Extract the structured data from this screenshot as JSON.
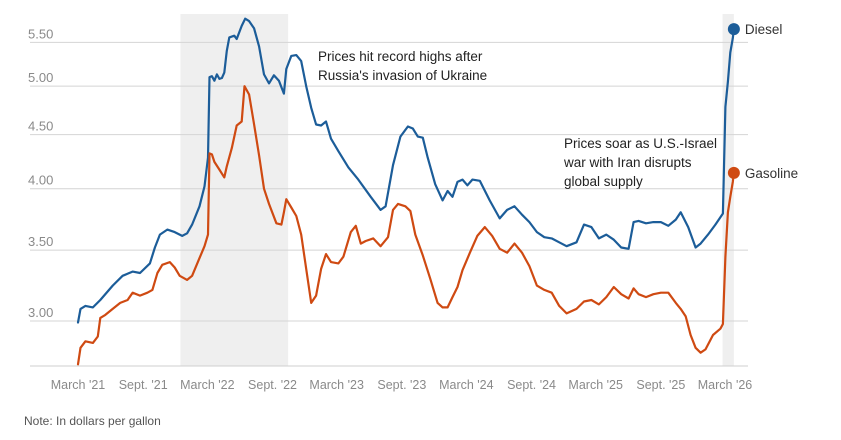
{
  "note": "Note: In dollars per gallon",
  "chart_data": {
    "type": "line",
    "y_scale": "log",
    "ylim": [
      2.72,
      5.85
    ],
    "y_ticks": [
      3.0,
      3.5,
      4.0,
      4.5,
      5.0,
      5.5
    ],
    "y_tick_labels": [
      "3.00",
      "3.50",
      "4.00",
      "4.50",
      "5.00",
      "5.50"
    ],
    "grid": true,
    "x_range": [
      "2021-03-01",
      "2026-04-01"
    ],
    "x_ticks": [
      {
        "date": "2021-03-01",
        "label": "March '21"
      },
      {
        "date": "2021-09-01",
        "label": "Sept. '21"
      },
      {
        "date": "2022-03-01",
        "label": "March '22"
      },
      {
        "date": "2022-09-01",
        "label": "Sept. '22"
      },
      {
        "date": "2023-03-01",
        "label": "March '23"
      },
      {
        "date": "2023-09-01",
        "label": "Sept. '23"
      },
      {
        "date": "2024-03-01",
        "label": "March '24"
      },
      {
        "date": "2024-09-01",
        "label": "Sept. '24"
      },
      {
        "date": "2025-03-01",
        "label": "March '25"
      },
      {
        "date": "2025-09-01",
        "label": "Sept. '25"
      },
      {
        "date": "2026-03-01",
        "label": "March '26"
      }
    ],
    "shaded_periods": [
      {
        "start": "2021-12-15",
        "end": "2022-10-15"
      },
      {
        "start": "2026-02-22",
        "end": "2026-03-26"
      }
    ],
    "annotations": [
      {
        "lines": [
          "Prices hit record highs after",
          "Russia's invasion of Ukraine"
        ]
      },
      {
        "lines": [
          "Prices soar as U.S.-Israel",
          "war with Iran disrupts",
          "global supply"
        ]
      }
    ],
    "series": [
      {
        "name": "Diesel",
        "color": "#1c5d99",
        "points": [
          [
            "2021-03-01",
            2.99
          ],
          [
            "2021-03-08",
            3.08
          ],
          [
            "2021-03-22",
            3.1
          ],
          [
            "2021-04-12",
            3.09
          ],
          [
            "2021-05-03",
            3.14
          ],
          [
            "2021-06-07",
            3.24
          ],
          [
            "2021-07-05",
            3.31
          ],
          [
            "2021-08-02",
            3.34
          ],
          [
            "2021-08-23",
            3.33
          ],
          [
            "2021-09-20",
            3.4
          ],
          [
            "2021-10-04",
            3.52
          ],
          [
            "2021-10-18",
            3.62
          ],
          [
            "2021-11-08",
            3.66
          ],
          [
            "2021-11-29",
            3.64
          ],
          [
            "2021-12-20",
            3.61
          ],
          [
            "2022-01-03",
            3.63
          ],
          [
            "2022-01-17",
            3.7
          ],
          [
            "2022-02-07",
            3.85
          ],
          [
            "2022-02-21",
            4.02
          ],
          [
            "2022-03-03",
            4.28
          ],
          [
            "2022-03-07",
            5.1
          ],
          [
            "2022-03-14",
            5.11
          ],
          [
            "2022-03-21",
            5.06
          ],
          [
            "2022-03-28",
            5.13
          ],
          [
            "2022-04-04",
            5.08
          ],
          [
            "2022-04-11",
            5.09
          ],
          [
            "2022-04-18",
            5.15
          ],
          [
            "2022-04-25",
            5.4
          ],
          [
            "2022-05-02",
            5.56
          ],
          [
            "2022-05-16",
            5.58
          ],
          [
            "2022-05-23",
            5.54
          ],
          [
            "2022-06-06",
            5.7
          ],
          [
            "2022-06-16",
            5.79
          ],
          [
            "2022-06-27",
            5.76
          ],
          [
            "2022-07-11",
            5.67
          ],
          [
            "2022-07-25",
            5.45
          ],
          [
            "2022-08-08",
            5.13
          ],
          [
            "2022-08-22",
            5.03
          ],
          [
            "2022-09-05",
            5.12
          ],
          [
            "2022-09-19",
            5.06
          ],
          [
            "2022-10-03",
            4.92
          ],
          [
            "2022-10-10",
            5.19
          ],
          [
            "2022-10-24",
            5.34
          ],
          [
            "2022-11-07",
            5.35
          ],
          [
            "2022-11-21",
            5.28
          ],
          [
            "2022-12-05",
            5.0
          ],
          [
            "2022-12-19",
            4.77
          ],
          [
            "2023-01-02",
            4.6
          ],
          [
            "2023-01-16",
            4.59
          ],
          [
            "2023-01-30",
            4.63
          ],
          [
            "2023-02-13",
            4.46
          ],
          [
            "2023-03-06",
            4.34
          ],
          [
            "2023-04-03",
            4.19
          ],
          [
            "2023-05-01",
            4.08
          ],
          [
            "2023-06-05",
            3.93
          ],
          [
            "2023-07-03",
            3.82
          ],
          [
            "2023-07-17",
            3.85
          ],
          [
            "2023-08-07",
            4.21
          ],
          [
            "2023-08-28",
            4.48
          ],
          [
            "2023-09-18",
            4.58
          ],
          [
            "2023-10-02",
            4.56
          ],
          [
            "2023-10-16",
            4.48
          ],
          [
            "2023-10-30",
            4.47
          ],
          [
            "2023-11-13",
            4.28
          ],
          [
            "2023-12-04",
            4.04
          ],
          [
            "2023-12-25",
            3.9
          ],
          [
            "2024-01-08",
            3.98
          ],
          [
            "2024-01-22",
            3.93
          ],
          [
            "2024-02-05",
            4.06
          ],
          [
            "2024-02-19",
            4.08
          ],
          [
            "2024-03-04",
            4.03
          ],
          [
            "2024-03-18",
            4.08
          ],
          [
            "2024-04-08",
            4.07
          ],
          [
            "2024-05-06",
            3.9
          ],
          [
            "2024-06-03",
            3.75
          ],
          [
            "2024-06-24",
            3.82
          ],
          [
            "2024-07-15",
            3.85
          ],
          [
            "2024-08-05",
            3.78
          ],
          [
            "2024-08-26",
            3.72
          ],
          [
            "2024-09-16",
            3.64
          ],
          [
            "2024-10-07",
            3.6
          ],
          [
            "2024-10-28",
            3.59
          ],
          [
            "2024-11-18",
            3.56
          ],
          [
            "2024-12-09",
            3.53
          ],
          [
            "2025-01-06",
            3.56
          ],
          [
            "2025-01-27",
            3.7
          ],
          [
            "2025-02-17",
            3.68
          ],
          [
            "2025-03-10",
            3.59
          ],
          [
            "2025-03-31",
            3.62
          ],
          [
            "2025-04-21",
            3.58
          ],
          [
            "2025-05-12",
            3.52
          ],
          [
            "2025-06-02",
            3.51
          ],
          [
            "2025-06-16",
            3.72
          ],
          [
            "2025-06-30",
            3.73
          ],
          [
            "2025-07-21",
            3.71
          ],
          [
            "2025-08-11",
            3.72
          ],
          [
            "2025-09-01",
            3.72
          ],
          [
            "2025-09-22",
            3.69
          ],
          [
            "2025-10-13",
            3.74
          ],
          [
            "2025-10-27",
            3.8
          ],
          [
            "2025-11-17",
            3.68
          ],
          [
            "2025-12-08",
            3.52
          ],
          [
            "2025-12-22",
            3.55
          ],
          [
            "2026-01-12",
            3.62
          ],
          [
            "2026-02-02",
            3.7
          ],
          [
            "2026-02-16",
            3.76
          ],
          [
            "2026-02-23",
            3.79
          ],
          [
            "2026-03-02",
            4.78
          ],
          [
            "2026-03-09",
            5.05
          ],
          [
            "2026-03-16",
            5.38
          ],
          [
            "2026-03-23",
            5.55
          ],
          [
            "2026-03-26",
            5.66
          ]
        ]
      },
      {
        "name": "Gasoline",
        "color": "#cf4a12",
        "points": [
          [
            "2021-03-01",
            2.73
          ],
          [
            "2021-03-08",
            2.83
          ],
          [
            "2021-03-22",
            2.87
          ],
          [
            "2021-04-12",
            2.86
          ],
          [
            "2021-04-26",
            2.9
          ],
          [
            "2021-05-03",
            3.02
          ],
          [
            "2021-05-17",
            3.04
          ],
          [
            "2021-06-07",
            3.08
          ],
          [
            "2021-06-28",
            3.12
          ],
          [
            "2021-07-19",
            3.14
          ],
          [
            "2021-08-02",
            3.19
          ],
          [
            "2021-08-23",
            3.17
          ],
          [
            "2021-09-13",
            3.19
          ],
          [
            "2021-09-27",
            3.21
          ],
          [
            "2021-10-11",
            3.33
          ],
          [
            "2021-10-25",
            3.39
          ],
          [
            "2021-11-15",
            3.41
          ],
          [
            "2021-11-29",
            3.37
          ],
          [
            "2021-12-13",
            3.31
          ],
          [
            "2022-01-03",
            3.28
          ],
          [
            "2022-01-17",
            3.31
          ],
          [
            "2022-02-07",
            3.44
          ],
          [
            "2022-02-21",
            3.53
          ],
          [
            "2022-03-03",
            3.62
          ],
          [
            "2022-03-07",
            4.32
          ],
          [
            "2022-03-14",
            4.31
          ],
          [
            "2022-03-21",
            4.24
          ],
          [
            "2022-04-04",
            4.17
          ],
          [
            "2022-04-18",
            4.1
          ],
          [
            "2022-04-25",
            4.2
          ],
          [
            "2022-05-09",
            4.37
          ],
          [
            "2022-05-23",
            4.59
          ],
          [
            "2022-06-06",
            4.63
          ],
          [
            "2022-06-14",
            5.0
          ],
          [
            "2022-06-27",
            4.91
          ],
          [
            "2022-07-11",
            4.6
          ],
          [
            "2022-07-25",
            4.3
          ],
          [
            "2022-08-08",
            4.0
          ],
          [
            "2022-08-22",
            3.87
          ],
          [
            "2022-09-12",
            3.71
          ],
          [
            "2022-09-26",
            3.7
          ],
          [
            "2022-10-03",
            3.8
          ],
          [
            "2022-10-10",
            3.91
          ],
          [
            "2022-10-24",
            3.84
          ],
          [
            "2022-11-07",
            3.77
          ],
          [
            "2022-11-21",
            3.62
          ],
          [
            "2022-12-05",
            3.36
          ],
          [
            "2022-12-19",
            3.12
          ],
          [
            "2023-01-02",
            3.17
          ],
          [
            "2023-01-16",
            3.36
          ],
          [
            "2023-01-30",
            3.47
          ],
          [
            "2023-02-13",
            3.41
          ],
          [
            "2023-03-06",
            3.4
          ],
          [
            "2023-03-20",
            3.45
          ],
          [
            "2023-04-10",
            3.64
          ],
          [
            "2023-04-24",
            3.69
          ],
          [
            "2023-05-08",
            3.55
          ],
          [
            "2023-05-22",
            3.57
          ],
          [
            "2023-06-12",
            3.59
          ],
          [
            "2023-07-03",
            3.53
          ],
          [
            "2023-07-24",
            3.6
          ],
          [
            "2023-08-07",
            3.82
          ],
          [
            "2023-08-21",
            3.87
          ],
          [
            "2023-09-11",
            3.85
          ],
          [
            "2023-09-25",
            3.81
          ],
          [
            "2023-10-09",
            3.62
          ],
          [
            "2023-10-30",
            3.46
          ],
          [
            "2023-11-20",
            3.29
          ],
          [
            "2023-12-11",
            3.12
          ],
          [
            "2023-12-25",
            3.09
          ],
          [
            "2024-01-08",
            3.09
          ],
          [
            "2024-01-22",
            3.16
          ],
          [
            "2024-02-05",
            3.23
          ],
          [
            "2024-02-19",
            3.35
          ],
          [
            "2024-03-11",
            3.48
          ],
          [
            "2024-04-01",
            3.61
          ],
          [
            "2024-04-22",
            3.68
          ],
          [
            "2024-05-13",
            3.61
          ],
          [
            "2024-06-03",
            3.51
          ],
          [
            "2024-06-24",
            3.48
          ],
          [
            "2024-07-15",
            3.55
          ],
          [
            "2024-08-05",
            3.48
          ],
          [
            "2024-08-26",
            3.38
          ],
          [
            "2024-09-16",
            3.24
          ],
          [
            "2024-10-07",
            3.21
          ],
          [
            "2024-10-28",
            3.19
          ],
          [
            "2024-11-18",
            3.1
          ],
          [
            "2024-12-09",
            3.05
          ],
          [
            "2025-01-06",
            3.08
          ],
          [
            "2025-01-27",
            3.13
          ],
          [
            "2025-02-17",
            3.14
          ],
          [
            "2025-03-10",
            3.11
          ],
          [
            "2025-03-31",
            3.16
          ],
          [
            "2025-04-21",
            3.23
          ],
          [
            "2025-05-12",
            3.18
          ],
          [
            "2025-06-02",
            3.15
          ],
          [
            "2025-06-16",
            3.22
          ],
          [
            "2025-06-30",
            3.18
          ],
          [
            "2025-07-21",
            3.16
          ],
          [
            "2025-08-11",
            3.18
          ],
          [
            "2025-09-01",
            3.19
          ],
          [
            "2025-09-22",
            3.19
          ],
          [
            "2025-10-13",
            3.12
          ],
          [
            "2025-10-27",
            3.08
          ],
          [
            "2025-11-10",
            3.03
          ],
          [
            "2025-11-24",
            2.91
          ],
          [
            "2025-12-08",
            2.83
          ],
          [
            "2025-12-22",
            2.8
          ],
          [
            "2026-01-05",
            2.82
          ],
          [
            "2026-01-26",
            2.91
          ],
          [
            "2026-02-16",
            2.95
          ],
          [
            "2026-02-23",
            2.98
          ],
          [
            "2026-03-02",
            3.45
          ],
          [
            "2026-03-09",
            3.8
          ],
          [
            "2026-03-16",
            3.93
          ],
          [
            "2026-03-23",
            4.06
          ],
          [
            "2026-03-26",
            4.14
          ]
        ]
      }
    ]
  }
}
